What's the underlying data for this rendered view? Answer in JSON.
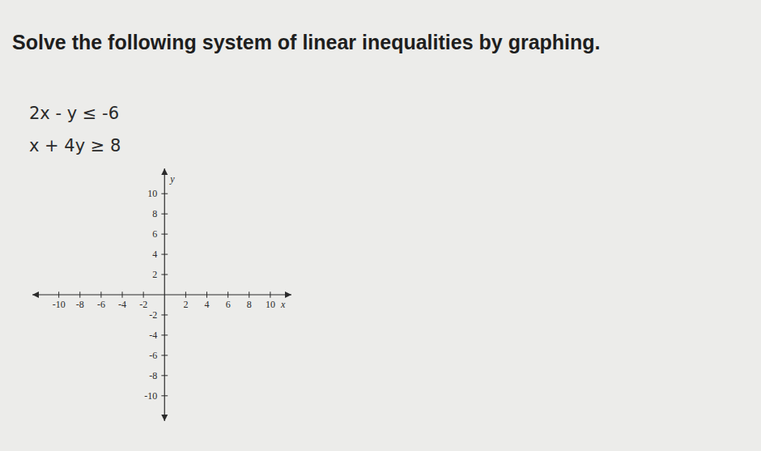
{
  "chart_data": {
    "type": "scatter",
    "title": "Solve the following system of linear inequalities by graphing.",
    "annotations": [
      "2x - y ≤ -6",
      "x + 4y ≥ 8"
    ],
    "x_label": "x",
    "y_label": "y",
    "xlim": [
      -12.5,
      12
    ],
    "ylim": [
      -12.5,
      12.5
    ],
    "xticks": [
      -10,
      -8,
      -6,
      -4,
      -2,
      2,
      4,
      6,
      8,
      10
    ],
    "yticks": [
      -10,
      -8,
      -6,
      -4,
      -2,
      2,
      4,
      6,
      8,
      10
    ]
  }
}
